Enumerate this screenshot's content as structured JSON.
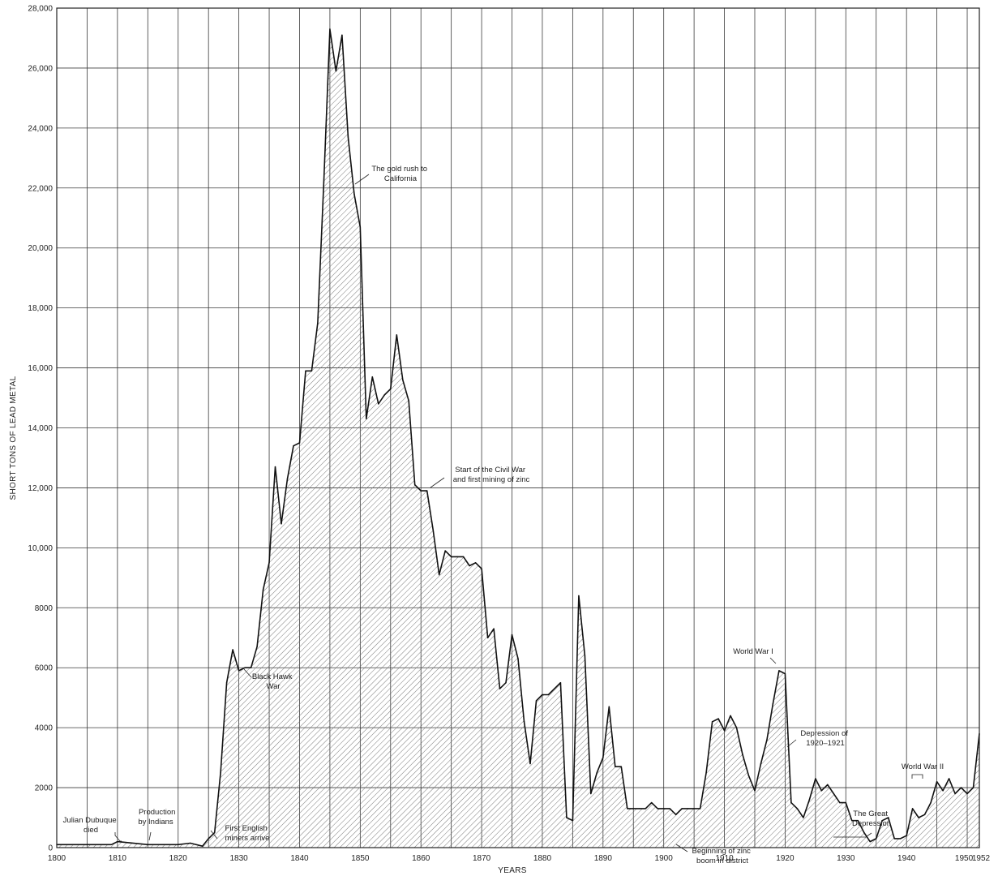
{
  "chart_data": {
    "type": "area",
    "title": "",
    "xlabel": "YEARS",
    "ylabel": "SHORT TONS OF LEAD METAL",
    "xlim": [
      1800,
      1952
    ],
    "ylim": [
      0,
      28000
    ],
    "grid": true,
    "fill": "diagonal-hatch",
    "x_ticks": [
      {
        "value": 1800,
        "label": "1800"
      },
      {
        "value": 1810,
        "label": "1810"
      },
      {
        "value": 1820,
        "label": "1820"
      },
      {
        "value": 1830,
        "label": "1830"
      },
      {
        "value": 1840,
        "label": "1840"
      },
      {
        "value": 1850,
        "label": "1850"
      },
      {
        "value": 1860,
        "label": "1860"
      },
      {
        "value": 1870,
        "label": "1870"
      },
      {
        "value": 1880,
        "label": "1880"
      },
      {
        "value": 1890,
        "label": "1890"
      },
      {
        "value": 1900,
        "label": "1900"
      },
      {
        "value": 1910,
        "label": "1910"
      },
      {
        "value": 1920,
        "label": "1920"
      },
      {
        "value": 1930,
        "label": "1930"
      },
      {
        "value": 1940,
        "label": "1940"
      },
      {
        "value": 1950,
        "label": "1950"
      },
      {
        "value": 1952,
        "label": "1952"
      }
    ],
    "y_ticks": [
      {
        "value": 0,
        "label": "0"
      },
      {
        "value": 2000,
        "label": "2000"
      },
      {
        "value": 4000,
        "label": "4000"
      },
      {
        "value": 6000,
        "label": "6000"
      },
      {
        "value": 8000,
        "label": "8000"
      },
      {
        "value": 10000,
        "label": "10,000"
      },
      {
        "value": 12000,
        "label": "12,000"
      },
      {
        "value": 14000,
        "label": "14,000"
      },
      {
        "value": 16000,
        "label": "16,000"
      },
      {
        "value": 18000,
        "label": "18,000"
      },
      {
        "value": 20000,
        "label": "20,000"
      },
      {
        "value": 22000,
        "label": "22,000"
      },
      {
        "value": 24000,
        "label": "24,000"
      },
      {
        "value": 26000,
        "label": "26,000"
      },
      {
        "value": 28000,
        "label": "28,000"
      }
    ],
    "x": [
      1800,
      1809,
      1810,
      1815,
      1820,
      1822,
      1824,
      1825,
      1826,
      1827,
      1828,
      1829,
      1830,
      1831,
      1832,
      1833,
      1834,
      1835,
      1836,
      1837,
      1838,
      1839,
      1840,
      1841,
      1842,
      1843,
      1844,
      1845,
      1846,
      1847,
      1848,
      1849,
      1850,
      1851,
      1852,
      1853,
      1854,
      1855,
      1856,
      1857,
      1858,
      1859,
      1860,
      1861,
      1862,
      1863,
      1864,
      1865,
      1866,
      1867,
      1868,
      1869,
      1870,
      1871,
      1872,
      1873,
      1874,
      1875,
      1876,
      1877,
      1878,
      1879,
      1880,
      1881,
      1882,
      1883,
      1884,
      1885,
      1886,
      1887,
      1888,
      1889,
      1890,
      1891,
      1892,
      1893,
      1894,
      1895,
      1896,
      1897,
      1898,
      1899,
      1900,
      1901,
      1902,
      1903,
      1904,
      1905,
      1906,
      1907,
      1908,
      1909,
      1910,
      1911,
      1912,
      1913,
      1914,
      1915,
      1916,
      1917,
      1918,
      1919,
      1920,
      1921,
      1922,
      1923,
      1924,
      1925,
      1926,
      1927,
      1928,
      1929,
      1930,
      1931,
      1932,
      1933,
      1934,
      1935,
      1936,
      1937,
      1938,
      1939,
      1940,
      1941,
      1942,
      1943,
      1944,
      1945,
      1946,
      1947,
      1948,
      1949,
      1950,
      1951,
      1952
    ],
    "values": [
      100,
      100,
      200,
      100,
      100,
      150,
      50,
      300,
      500,
      2500,
      5500,
      6600,
      5900,
      6000,
      6000,
      6700,
      8600,
      9500,
      12700,
      10800,
      12300,
      13400,
      13500,
      15900,
      15900,
      17500,
      22200,
      27300,
      25900,
      27100,
      23700,
      21800,
      20700,
      14300,
      15700,
      14800,
      15100,
      15300,
      17100,
      15600,
      14900,
      12100,
      11900,
      11900,
      10600,
      9100,
      9900,
      9700,
      9700,
      9700,
      9400,
      9500,
      9300,
      7000,
      7300,
      5300,
      5500,
      7100,
      6300,
      4200,
      2800,
      4900,
      5100,
      5100,
      5300,
      5500,
      1000,
      900,
      8400,
      6400,
      1800,
      2500,
      3000,
      4700,
      2700,
      2700,
      1300,
      1300,
      1300,
      1300,
      1500,
      1300,
      1300,
      1300,
      1100,
      1300,
      1300,
      1300,
      1300,
      2500,
      4200,
      4300,
      3900,
      4400,
      4000,
      3100,
      2400,
      1900,
      2800,
      3600,
      4800,
      5900,
      5800,
      1500,
      1300,
      1000,
      1600,
      2300,
      1900,
      2100,
      1800,
      1500,
      1500,
      900,
      900,
      500,
      200,
      300,
      900,
      1000,
      300,
      300,
      400,
      1300,
      1000,
      1100,
      1500,
      2200,
      1900,
      2300,
      1800,
      2000,
      1800,
      2000,
      3800
    ]
  },
  "annotations": [
    {
      "id": "dubuque",
      "lines": [
        "Julian Dubuque",
        "died"
      ]
    },
    {
      "id": "indians",
      "lines": [
        "Production",
        "by Indians"
      ]
    },
    {
      "id": "english",
      "lines": [
        "First English",
        "miners arrive"
      ]
    },
    {
      "id": "blackhawk",
      "lines": [
        "Black Hawk",
        "War"
      ]
    },
    {
      "id": "goldrush",
      "lines": [
        "The gold rush to",
        "California"
      ]
    },
    {
      "id": "civilwar",
      "lines": [
        "Start of the Civil War",
        "and first mining of zinc"
      ]
    },
    {
      "id": "zincboom",
      "lines": [
        "Beginning of zinc",
        "boom in district"
      ]
    },
    {
      "id": "ww1",
      "lines": [
        "World War I"
      ]
    },
    {
      "id": "dep1920",
      "lines": [
        "Depression of",
        "1920–1921"
      ]
    },
    {
      "id": "greatdep",
      "lines": [
        "The Great",
        "Depression"
      ]
    },
    {
      "id": "ww2",
      "lines": [
        "World War II"
      ]
    }
  ]
}
